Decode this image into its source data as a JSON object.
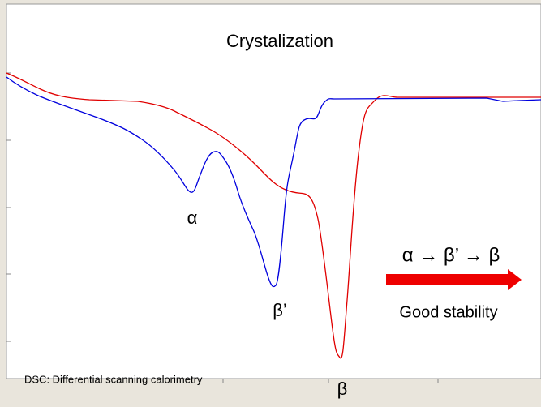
{
  "title": "Crystalization",
  "peaks": {
    "alpha": "α",
    "beta_prime": "β’",
    "beta": "β"
  },
  "sequence": "α → β’ → β",
  "stability": "Good stability",
  "caption": "DSC: Differential scanning calorimetry"
}
